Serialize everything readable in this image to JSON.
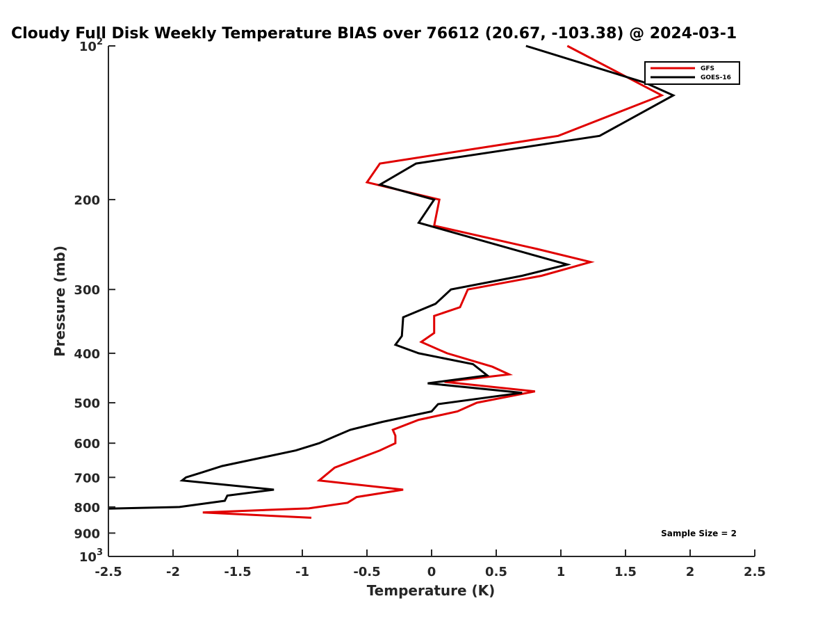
{
  "chart_data": {
    "type": "line",
    "title": "Cloudy Full Disk Weekly Temperature BIAS over 76612 (20.67, -103.38) @ 2024-03-1",
    "xlabel": "Temperature (K)",
    "ylabel": "Pressure (mb)",
    "xlim": [
      -2.5,
      2.5
    ],
    "ylim": [
      1000,
      100
    ],
    "yscale": "log",
    "x_ticks": [
      -2.5,
      -2,
      -1.5,
      -1,
      -0.5,
      0,
      0.5,
      1,
      1.5,
      2,
      2.5
    ],
    "x_tick_labels": [
      "-2.5",
      "-2",
      "-1.5",
      "-1",
      "-0.5",
      "0",
      "0.5",
      "1",
      "1.5",
      "2",
      "2.5"
    ],
    "y_ticks": [
      {
        "value": 100,
        "base": "10",
        "exp": "2"
      },
      {
        "value": 200,
        "label": "200"
      },
      {
        "value": 300,
        "label": "300"
      },
      {
        "value": 400,
        "label": "400"
      },
      {
        "value": 500,
        "label": "500"
      },
      {
        "value": 600,
        "label": "600"
      },
      {
        "value": 700,
        "label": "700"
      },
      {
        "value": 800,
        "label": "800"
      },
      {
        "value": 900,
        "label": "900"
      },
      {
        "value": 1000,
        "base": "10",
        "exp": "3"
      }
    ],
    "legend": {
      "position": "top-right",
      "entries": [
        "GFS",
        "GOES-16"
      ]
    },
    "annotation": "Sample Size = 2",
    "grid": false,
    "series": [
      {
        "name": "GFS",
        "color": "#e00000",
        "points": [
          {
            "x": 1.05,
            "y": 100
          },
          {
            "x": 1.78,
            "y": 125
          },
          {
            "x": 0.98,
            "y": 150
          },
          {
            "x": -0.4,
            "y": 170
          },
          {
            "x": -0.5,
            "y": 185
          },
          {
            "x": 0.06,
            "y": 200
          },
          {
            "x": 0.02,
            "y": 225
          },
          {
            "x": 0.82,
            "y": 250
          },
          {
            "x": 1.23,
            "y": 265
          },
          {
            "x": 0.85,
            "y": 282
          },
          {
            "x": 0.28,
            "y": 300
          },
          {
            "x": 0.22,
            "y": 325
          },
          {
            "x": 0.02,
            "y": 338
          },
          {
            "x": 0.02,
            "y": 365
          },
          {
            "x": -0.08,
            "y": 380
          },
          {
            "x": 0.12,
            "y": 400
          },
          {
            "x": 0.47,
            "y": 425
          },
          {
            "x": 0.6,
            "y": 440
          },
          {
            "x": 0.1,
            "y": 455
          },
          {
            "x": 0.8,
            "y": 475
          },
          {
            "x": 0.35,
            "y": 500
          },
          {
            "x": 0.2,
            "y": 520
          },
          {
            "x": -0.1,
            "y": 540
          },
          {
            "x": -0.3,
            "y": 565
          },
          {
            "x": -0.28,
            "y": 580
          },
          {
            "x": -0.28,
            "y": 600
          },
          {
            "x": -0.4,
            "y": 620
          },
          {
            "x": -0.75,
            "y": 670
          },
          {
            "x": -0.87,
            "y": 710
          },
          {
            "x": -0.22,
            "y": 740
          },
          {
            "x": -0.58,
            "y": 765
          },
          {
            "x": -0.65,
            "y": 785
          },
          {
            "x": -0.95,
            "y": 805
          },
          {
            "x": -1.77,
            "y": 820
          },
          {
            "x": -0.93,
            "y": 840
          }
        ]
      },
      {
        "name": "GOES-16",
        "color": "#000000",
        "points": [
          {
            "x": 0.73,
            "y": 100
          },
          {
            "x": 1.65,
            "y": 118
          },
          {
            "x": 1.87,
            "y": 125
          },
          {
            "x": 1.3,
            "y": 150
          },
          {
            "x": -0.12,
            "y": 170
          },
          {
            "x": -0.4,
            "y": 187
          },
          {
            "x": 0.02,
            "y": 200
          },
          {
            "x": -0.1,
            "y": 222
          },
          {
            "x": 0.67,
            "y": 252
          },
          {
            "x": 1.05,
            "y": 268
          },
          {
            "x": 0.7,
            "y": 282
          },
          {
            "x": 0.15,
            "y": 300
          },
          {
            "x": 0.03,
            "y": 320
          },
          {
            "x": -0.22,
            "y": 340
          },
          {
            "x": -0.23,
            "y": 370
          },
          {
            "x": -0.28,
            "y": 385
          },
          {
            "x": -0.1,
            "y": 400
          },
          {
            "x": 0.32,
            "y": 420
          },
          {
            "x": 0.43,
            "y": 442
          },
          {
            "x": -0.03,
            "y": 458
          },
          {
            "x": 0.7,
            "y": 478
          },
          {
            "x": 0.05,
            "y": 503
          },
          {
            "x": 0.0,
            "y": 520
          },
          {
            "x": -0.38,
            "y": 545
          },
          {
            "x": -0.63,
            "y": 565
          },
          {
            "x": -0.75,
            "y": 582
          },
          {
            "x": -0.87,
            "y": 600
          },
          {
            "x": -1.05,
            "y": 620
          },
          {
            "x": -1.62,
            "y": 665
          },
          {
            "x": -1.78,
            "y": 685
          },
          {
            "x": -1.9,
            "y": 700
          },
          {
            "x": -1.93,
            "y": 710
          },
          {
            "x": -1.22,
            "y": 740
          },
          {
            "x": -1.58,
            "y": 760
          },
          {
            "x": -1.6,
            "y": 778
          },
          {
            "x": -1.95,
            "y": 800
          },
          {
            "x": -2.5,
            "y": 806
          }
        ]
      }
    ]
  }
}
